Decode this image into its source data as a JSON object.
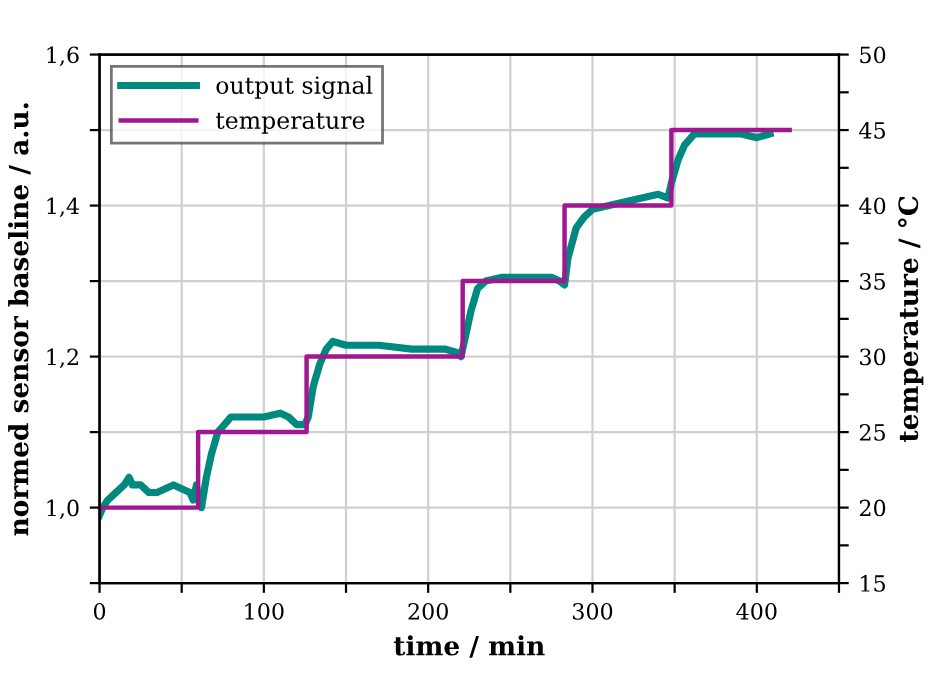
{
  "chart_data": {
    "type": "line",
    "xlabel": "time / min",
    "ylabel": "normed sensor baseline / a.u.",
    "y2label": "temperature / °C",
    "xlim": [
      0,
      450
    ],
    "xticks": [
      0,
      {
        "value": 50,
        "label": null
      },
      100,
      {
        "value": 150,
        "label": null
      },
      200,
      {
        "value": 250,
        "label": null
      },
      300,
      {
        "value": 350,
        "label": null
      },
      400,
      {
        "value": 450,
        "label": null
      }
    ],
    "ylim": [
      0.9,
      1.6
    ],
    "yticks": [
      {
        "value": 0.9,
        "label": null
      },
      {
        "value": 1.0,
        "label": "1,0"
      },
      {
        "value": 1.1,
        "label": null
      },
      {
        "value": 1.2,
        "label": "1,2"
      },
      {
        "value": 1.3,
        "label": null
      },
      {
        "value": 1.4,
        "label": "1,4"
      },
      {
        "value": 1.5,
        "label": null
      },
      {
        "value": 1.6,
        "label": "1,6"
      }
    ],
    "y2lim": [
      15,
      50
    ],
    "y2ticks": [
      15,
      {
        "value": 17.5,
        "label": null
      },
      20,
      {
        "value": 22.5,
        "label": null
      },
      25,
      {
        "value": 27.5,
        "label": null
      },
      30,
      {
        "value": 32.5,
        "label": null
      },
      35,
      {
        "value": 37.5,
        "label": null
      },
      40,
      {
        "value": 42.5,
        "label": null
      },
      45,
      {
        "value": 47.5,
        "label": null
      },
      50
    ],
    "grid": true,
    "legend": "top left",
    "series": [
      {
        "name": "output signal",
        "color": "#00897f",
        "x": [
          0,
          2,
          5,
          10,
          15,
          18,
          20,
          25,
          30,
          35,
          40,
          45,
          50,
          55,
          57,
          59,
          60,
          62,
          65,
          68,
          72,
          76,
          80,
          90,
          100,
          110,
          115,
          120,
          125,
          127,
          130,
          134,
          138,
          142,
          150,
          170,
          190,
          210,
          218,
          220,
          222,
          226,
          230,
          235,
          245,
          260,
          275,
          280,
          283,
          285,
          290,
          295,
          300,
          310,
          320,
          330,
          340,
          346,
          348,
          352,
          356,
          362,
          375,
          390,
          400,
          408
        ],
        "values": [
          0.99,
          1.0,
          1.01,
          1.02,
          1.03,
          1.04,
          1.03,
          1.03,
          1.02,
          1.02,
          1.025,
          1.03,
          1.025,
          1.02,
          1.01,
          1.03,
          1.01,
          1.0,
          1.04,
          1.07,
          1.1,
          1.11,
          1.12,
          1.12,
          1.12,
          1.125,
          1.12,
          1.11,
          1.11,
          1.12,
          1.16,
          1.19,
          1.21,
          1.22,
          1.215,
          1.215,
          1.21,
          1.21,
          1.205,
          1.2,
          1.22,
          1.26,
          1.29,
          1.3,
          1.305,
          1.305,
          1.305,
          1.3,
          1.295,
          1.33,
          1.37,
          1.385,
          1.395,
          1.4,
          1.405,
          1.41,
          1.415,
          1.41,
          1.43,
          1.46,
          1.48,
          1.495,
          1.495,
          1.495,
          1.49,
          1.495
        ]
      },
      {
        "name": "temperature",
        "color": "#a0178f",
        "type": "step",
        "axis": "y2",
        "x": [
          0,
          60,
          126,
          221,
          283,
          348,
          420
        ],
        "values": [
          20,
          25,
          30,
          35,
          40,
          45,
          45
        ]
      }
    ]
  }
}
